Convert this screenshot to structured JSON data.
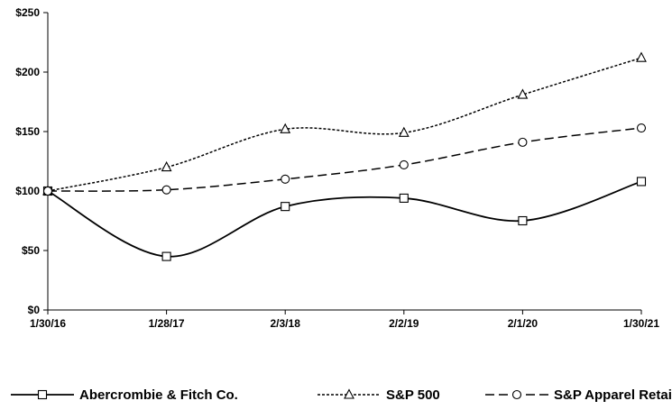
{
  "chart_data": {
    "type": "line",
    "title": "",
    "xlabel": "",
    "ylabel": "",
    "categories": [
      "1/30/16",
      "1/28/17",
      "2/3/18",
      "2/2/19",
      "2/1/20",
      "1/30/21"
    ],
    "ylim": [
      0,
      250
    ],
    "yticks": [
      0,
      50,
      100,
      150,
      200,
      250
    ],
    "ytick_labels": [
      "$0",
      "$50",
      "$100",
      "$150",
      "$200",
      "$250"
    ],
    "grid": false,
    "legend_position": "bottom",
    "series": [
      {
        "name": "Abercrombie & Fitch Co.",
        "marker": "square",
        "line_style": "solid",
        "color": "#000000",
        "values": [
          100,
          45,
          87,
          94,
          75,
          108
        ]
      },
      {
        "name": "S&P 500",
        "marker": "triangle",
        "line_style": "dotted",
        "color": "#000000",
        "values": [
          100,
          120,
          152,
          149,
          181,
          212
        ]
      },
      {
        "name": "S&P Apparel Retail",
        "marker": "circle",
        "line_style": "dashed",
        "color": "#000000",
        "values": [
          100,
          101,
          110,
          122,
          141,
          153
        ]
      }
    ]
  }
}
